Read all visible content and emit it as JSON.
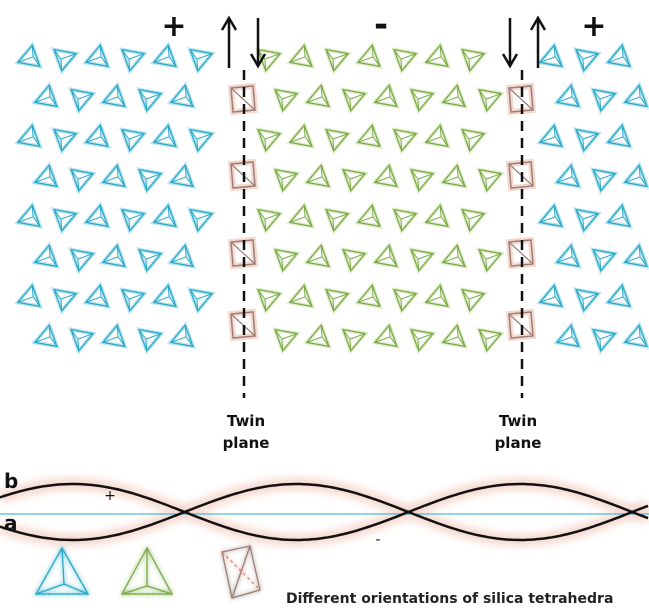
{
  "signs": {
    "left": "+",
    "middle": "-",
    "right": "+"
  },
  "twin_plane_label": {
    "line1": "Twin",
    "line2": "plane"
  },
  "wave_labels": {
    "b": "b",
    "a": "a",
    "plus": "+",
    "minus": "-"
  },
  "legend": {
    "caption": "Different orientations of silica tetrahedra",
    "items": [
      {
        "name": "blue-orientation",
        "color": "#2aa9c8"
      },
      {
        "name": "green-orientation",
        "color": "#7aaa48"
      },
      {
        "name": "brown-orientation",
        "color": "#9a7f79"
      }
    ]
  },
  "colors": {
    "blue": "#2aa9c8",
    "green": "#7aaa48",
    "brown": "#9a7f79",
    "glow_blue": "#bfe6f0",
    "glow_green": "#e3efcf",
    "glow_pink": "#f6d8cf"
  }
}
